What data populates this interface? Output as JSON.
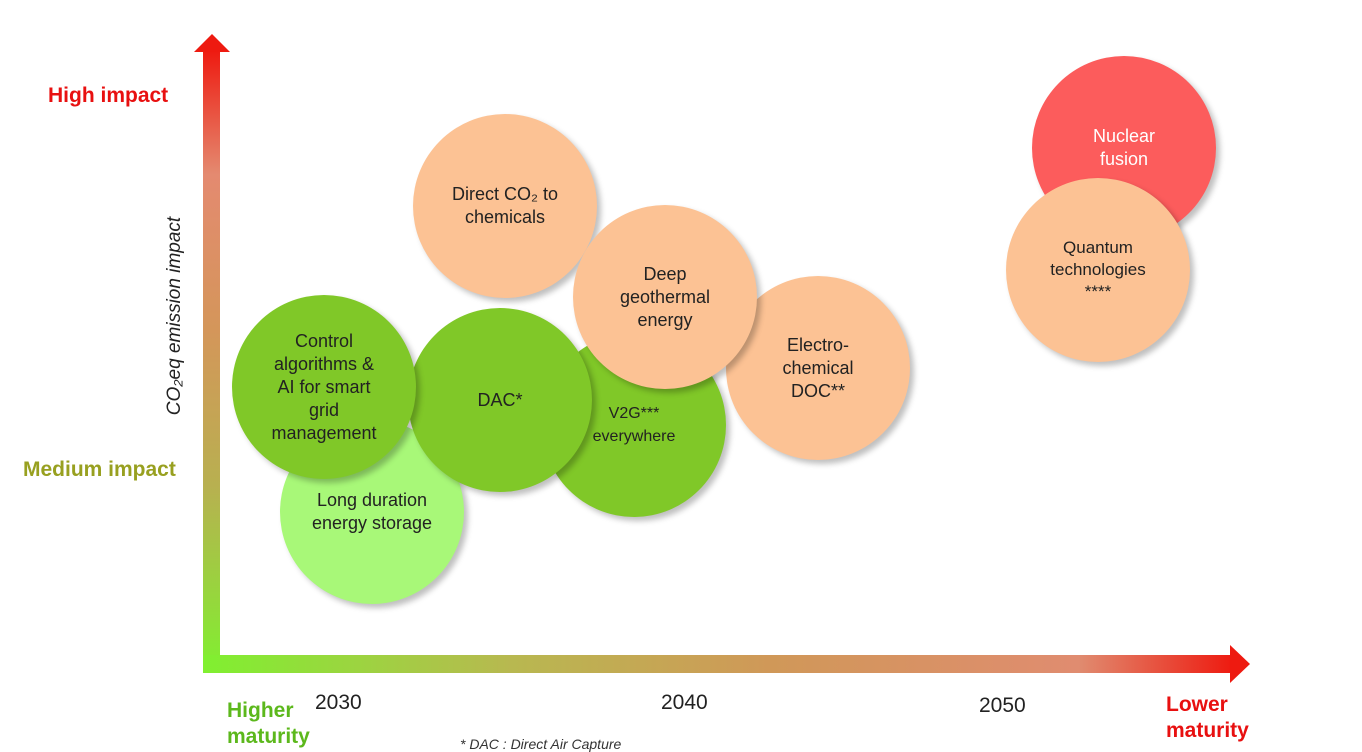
{
  "y_axis": {
    "title": "CO₂eq emission impact",
    "high_label": "High impact",
    "medium_label": "Medium impact"
  },
  "x_axis": {
    "left_label": "Higher\nmaturity",
    "right_label": "Lower\nmaturity",
    "ticks": [
      "2030",
      "2040",
      "2050"
    ]
  },
  "footnote": "* DAC : Direct Air Capture",
  "colors": {
    "mature_green": "#80c828",
    "light_green": "#a8f878",
    "peach": "#fcc294",
    "red": "#fc5c5c"
  },
  "bubbles": {
    "v2g": "V2G***\neverywhere",
    "dac": "DAC*",
    "long": "Long duration\nenergy storage",
    "control": "Control\nalgorithms &\nAI for smart\ngrid\nmanagement",
    "direct": "Direct CO₂ to\nchemicals",
    "electro": "Electro-\nchemical\nDOC**",
    "geo": "Deep\ngeothermal\nenergy",
    "nuclear": "Nuclear\nfusion",
    "quantum": "Quantum\ntechnologies\n****"
  }
}
